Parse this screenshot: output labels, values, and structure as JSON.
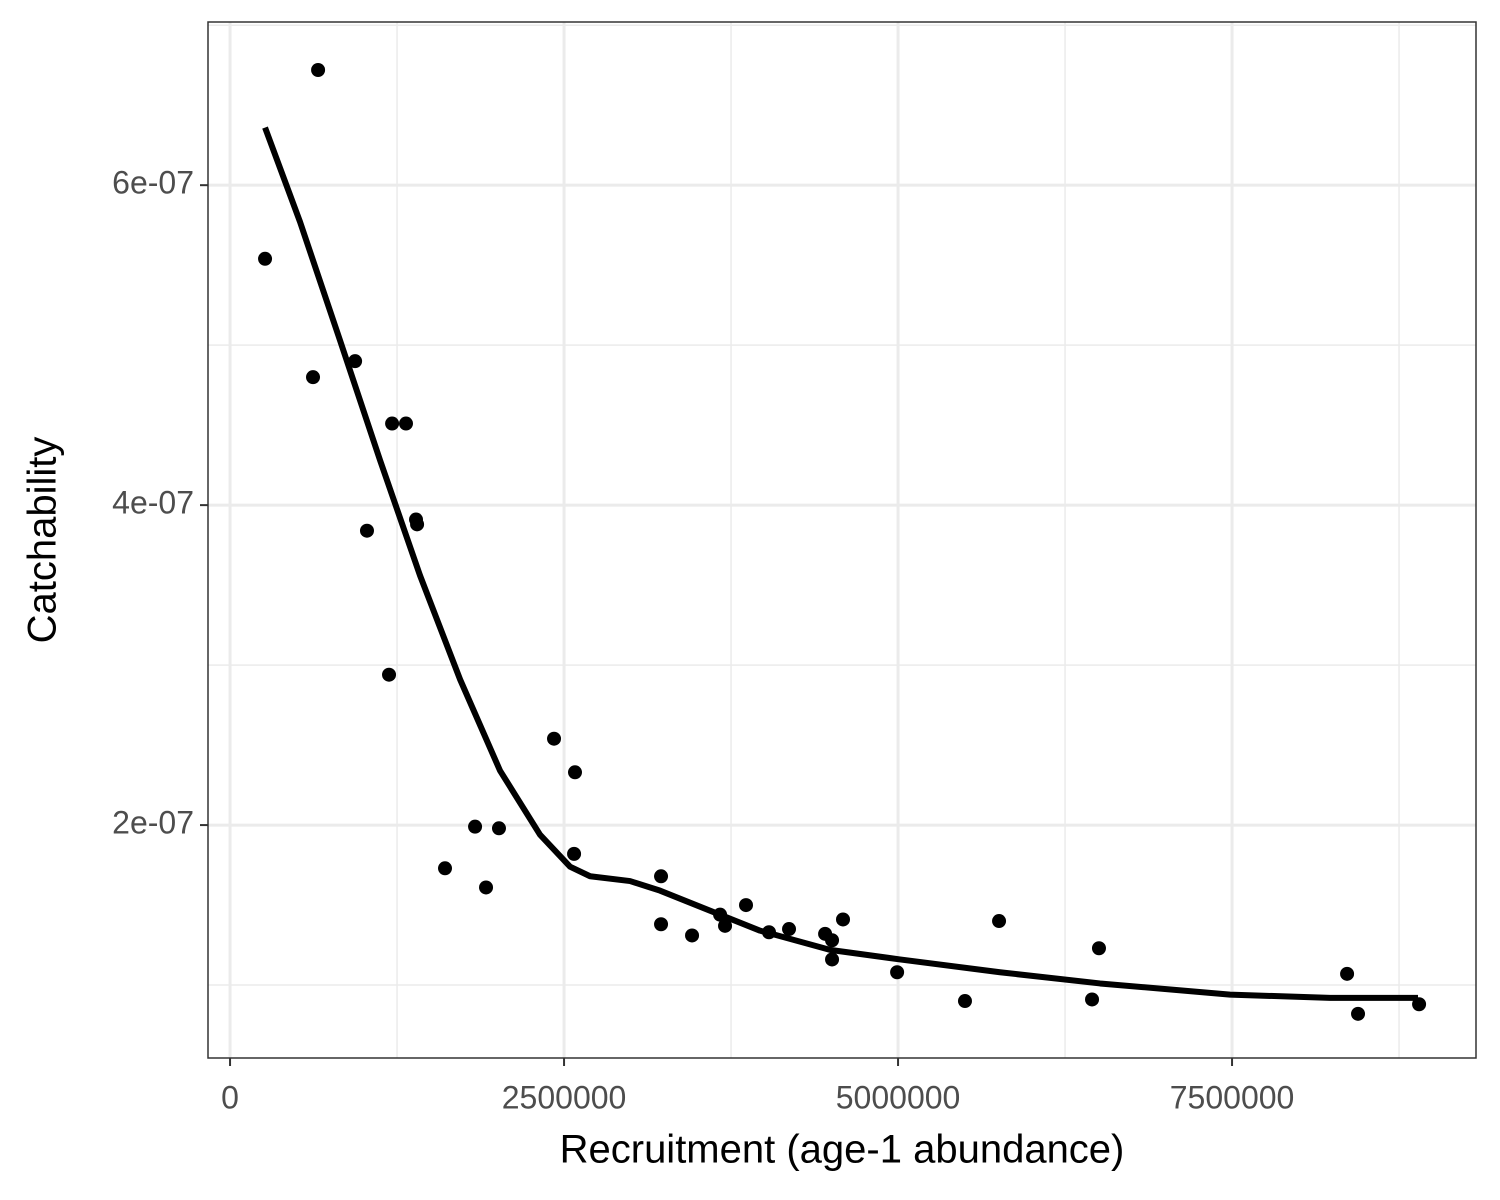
{
  "chart_data": {
    "type": "scatter",
    "x_label": "Recruitment (age-1 abundance)",
    "y_label": "Catchability",
    "xlim": [
      -165000,
      9326000
    ],
    "ylim": [
      5.44e-08,
      7.02e-07
    ],
    "xticks": [
      0,
      2500000,
      5000000,
      7500000
    ],
    "yticks": [
      {
        "value": 2e-07,
        "label": "2e-07"
      },
      {
        "value": 4e-07,
        "label": "4e-07"
      },
      {
        "value": 6e-07,
        "label": "6e-07"
      }
    ],
    "grid": true,
    "series": [
      {
        "type": "scatter",
        "color": "#000000",
        "x": [
          262000,
          659000,
          621000,
          936000,
          1213000,
          1317000,
          1025000,
          1392000,
          1400000,
          1190000,
          1609000,
          1834000,
          1916000,
          2013000,
          2425000,
          2582000,
          2575000,
          3226000,
          3226000,
          3458000,
          3668000,
          3705000,
          3862000,
          4034000,
          4184000,
          4454000,
          4506000,
          4506000,
          4588000,
          4993000,
          5501000,
          5756000,
          6452000,
          6504000,
          8361000,
          8443000,
          8900000
        ],
        "values": [
          5.54e-07,
          6.72e-07,
          4.8e-07,
          4.9e-07,
          4.51e-07,
          4.51e-07,
          3.84e-07,
          3.91e-07,
          3.88e-07,
          2.94e-07,
          1.73e-07,
          1.99e-07,
          1.61e-07,
          1.98e-07,
          2.54e-07,
          2.33e-07,
          1.82e-07,
          1.68e-07,
          1.38e-07,
          1.31e-07,
          1.44e-07,
          1.37e-07,
          1.5e-07,
          1.33e-07,
          1.35e-07,
          1.32e-07,
          1.28e-07,
          1.16e-07,
          1.41e-07,
          1.08e-07,
          9e-08,
          1.4e-07,
          9.1e-08,
          1.23e-07,
          1.07e-07,
          8.2e-08,
          8.8e-08
        ]
      },
      {
        "type": "line",
        "color": "#000000",
        "x": [
          262000,
          524000,
          823000,
          1123000,
          1422000,
          1722000,
          2021000,
          2320000,
          2545000,
          2695000,
          2994000,
          3219000,
          3518000,
          3967000,
          4491000,
          5015000,
          5763000,
          6512000,
          7485000,
          8234000,
          8892000
        ],
        "values": [
          6.36e-07,
          5.77e-07,
          5.03e-07,
          4.28e-07,
          3.56e-07,
          2.91e-07,
          2.34e-07,
          1.94e-07,
          1.74e-07,
          1.68e-07,
          1.65e-07,
          1.59e-07,
          1.49e-07,
          1.34e-07,
          1.22e-07,
          1.16e-07,
          1.08e-07,
          1.01e-07,
          9.4e-08,
          9.2e-08,
          9.2e-08
        ]
      }
    ]
  }
}
